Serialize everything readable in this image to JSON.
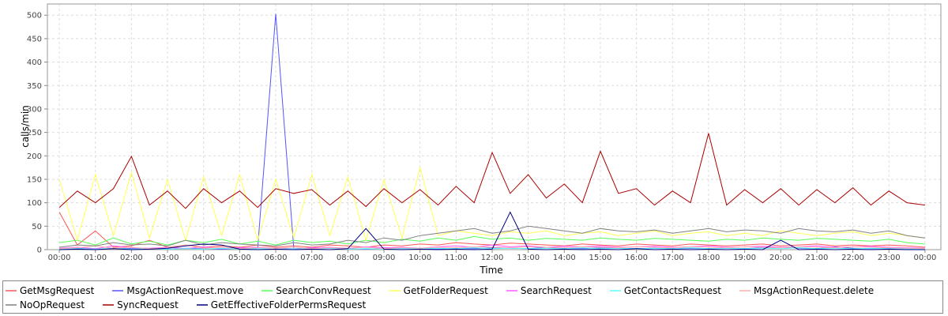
{
  "chart_data": {
    "type": "line",
    "x_label": "Time",
    "y_label": "calls/min",
    "x": [
      0,
      0.5,
      1,
      1.5,
      2,
      2.5,
      3,
      3.5,
      4,
      4.5,
      5,
      5.5,
      6,
      6.5,
      7,
      7.5,
      8,
      8.5,
      9,
      9.5,
      10,
      10.5,
      11,
      11.5,
      12,
      12.5,
      13,
      13.5,
      14,
      14.5,
      15,
      15.5,
      16,
      16.5,
      17,
      17.5,
      18,
      18.5,
      19,
      19.5,
      20,
      20.5,
      21,
      21.5,
      22,
      22.5,
      23,
      23.5,
      24
    ],
    "xlim": [
      -0.33,
      24.44
    ],
    "xticks": [
      {
        "value": 0,
        "label": "00:00"
      },
      {
        "value": 1,
        "label": "01:00"
      },
      {
        "value": 2,
        "label": "02:00"
      },
      {
        "value": 3,
        "label": "03:00"
      },
      {
        "value": 4,
        "label": "04:00"
      },
      {
        "value": 5,
        "label": "05:00"
      },
      {
        "value": 6,
        "label": "06:00"
      },
      {
        "value": 7,
        "label": "07:00"
      },
      {
        "value": 8,
        "label": "08:00"
      },
      {
        "value": 9,
        "label": "09:00"
      },
      {
        "value": 10,
        "label": "10:00"
      },
      {
        "value": 11,
        "label": "11:00"
      },
      {
        "value": 12,
        "label": "12:00"
      },
      {
        "value": 13,
        "label": "13:00"
      },
      {
        "value": 14,
        "label": "14:00"
      },
      {
        "value": 15,
        "label": "15:00"
      },
      {
        "value": 16,
        "label": "16:00"
      },
      {
        "value": 17,
        "label": "17:00"
      },
      {
        "value": 18,
        "label": "18:00"
      },
      {
        "value": 19,
        "label": "19:00"
      },
      {
        "value": 20,
        "label": "20:00"
      },
      {
        "value": 21,
        "label": "21:00"
      },
      {
        "value": 22,
        "label": "22:00"
      },
      {
        "value": 23,
        "label": "23:00"
      },
      {
        "value": 24,
        "label": "00:00"
      }
    ],
    "ylim": [
      0,
      524
    ],
    "yticks": [
      0,
      50,
      100,
      150,
      200,
      250,
      300,
      350,
      400,
      450,
      500
    ],
    "grid": true,
    "legend": "bottom",
    "series": [
      {
        "name": "GetMsgRequest",
        "color": "#ff5555",
        "values": [
          80,
          10,
          40,
          5,
          8,
          20,
          5,
          10,
          5,
          8,
          5,
          10,
          5,
          8,
          5,
          10,
          8,
          5,
          10,
          8,
          12,
          10,
          15,
          12,
          10,
          14,
          12,
          10,
          8,
          12,
          10,
          8,
          12,
          10,
          8,
          12,
          10,
          8,
          10,
          12,
          8,
          10,
          12,
          8,
          10,
          8,
          10,
          8,
          5
        ]
      },
      {
        "name": "MsgActionRequest.move",
        "color": "#5555ff",
        "values": [
          2,
          3,
          1,
          2,
          3,
          2,
          1,
          3,
          2,
          1,
          2,
          3,
          503,
          2,
          1,
          3,
          2,
          1,
          2,
          3,
          2,
          1,
          3,
          2,
          4,
          3,
          2,
          5,
          3,
          2,
          4,
          3,
          2,
          3,
          2,
          3,
          2,
          3,
          2,
          4,
          5,
          3,
          2,
          6,
          3,
          2,
          3,
          2,
          1
        ]
      },
      {
        "name": "SearchConvRequest",
        "color": "#55ff55",
        "values": [
          15,
          20,
          10,
          25,
          12,
          18,
          10,
          20,
          15,
          22,
          12,
          18,
          10,
          20,
          15,
          18,
          12,
          20,
          15,
          22,
          18,
          25,
          20,
          28,
          22,
          25,
          20,
          24,
          22,
          20,
          25,
          22,
          20,
          24,
          22,
          20,
          18,
          22,
          20,
          25,
          22,
          20,
          24,
          22,
          20,
          18,
          22,
          15,
          12
        ]
      },
      {
        "name": "GetFolderRequest",
        "color": "#ffff55",
        "values": [
          150,
          20,
          160,
          30,
          165,
          25,
          150,
          20,
          155,
          30,
          160,
          20,
          150,
          25,
          160,
          30,
          155,
          20,
          150,
          25,
          175,
          30,
          40,
          35,
          30,
          38,
          35,
          40,
          30,
          35,
          38,
          30,
          35,
          40,
          30,
          35,
          38,
          30,
          35,
          30,
          40,
          35,
          30,
          35,
          38,
          30,
          35,
          30,
          25
        ]
      },
      {
        "name": "SearchRequest",
        "color": "#ff55ff",
        "values": [
          3,
          5,
          2,
          8,
          4,
          3,
          5,
          2,
          6,
          3,
          4,
          5,
          3,
          2,
          4,
          5,
          3,
          6,
          4,
          5,
          3,
          6,
          8,
          5,
          10,
          6,
          8,
          5,
          7,
          6,
          8,
          5,
          6,
          7,
          5,
          6,
          8,
          5,
          6,
          7,
          5,
          6,
          8,
          5,
          6,
          7,
          5,
          4,
          3
        ]
      },
      {
        "name": "GetContactsRequest",
        "color": "#55ffff",
        "values": [
          1,
          2,
          1,
          3,
          1,
          2,
          1,
          2,
          1,
          3,
          1,
          2,
          1,
          2,
          1,
          3,
          1,
          2,
          1,
          2,
          2,
          3,
          2,
          4,
          2,
          3,
          2,
          3,
          2,
          4,
          2,
          3,
          2,
          3,
          2,
          4,
          2,
          3,
          2,
          3,
          2,
          4,
          2,
          3,
          2,
          3,
          2,
          2,
          1
        ]
      },
      {
        "name": "MsgActionRequest.delete",
        "color": "#ffafaf",
        "values": [
          2,
          4,
          8,
          3,
          5,
          2,
          4,
          10,
          3,
          5,
          2,
          4,
          3,
          5,
          2,
          4,
          3,
          5,
          2,
          4,
          3,
          5,
          4,
          6,
          5,
          4,
          6,
          5,
          4,
          6,
          5,
          4,
          6,
          5,
          4,
          6,
          5,
          4,
          6,
          5,
          4,
          6,
          5,
          4,
          6,
          5,
          4,
          3,
          2
        ]
      },
      {
        "name": "NoOpRequest",
        "color": "#808080",
        "values": [
          5,
          10,
          8,
          15,
          10,
          12,
          8,
          20,
          10,
          15,
          12,
          10,
          8,
          15,
          10,
          12,
          20,
          15,
          25,
          20,
          30,
          35,
          40,
          45,
          35,
          40,
          50,
          45,
          40,
          35,
          45,
          40,
          38,
          42,
          35,
          40,
          45,
          38,
          42,
          40,
          35,
          45,
          40,
          38,
          42,
          35,
          40,
          30,
          25
        ]
      },
      {
        "name": "SyncRequest",
        "color": "#aa0000",
        "values": [
          90,
          125,
          100,
          130,
          199,
          95,
          125,
          88,
          130,
          100,
          125,
          90,
          130,
          120,
          128,
          95,
          125,
          92,
          130,
          100,
          128,
          95,
          135,
          100,
          207,
          120,
          160,
          110,
          140,
          100,
          210,
          120,
          130,
          95,
          125,
          100,
          248,
          95,
          128,
          100,
          130,
          95,
          128,
          100,
          132,
          95,
          125,
          100,
          95
        ]
      },
      {
        "name": "GetEffectiveFolderPermsRequest",
        "color": "#000080",
        "values": [
          0,
          1,
          0,
          2,
          0,
          1,
          3,
          8,
          12,
          10,
          1,
          0,
          1,
          0,
          1,
          0,
          2,
          45,
          1,
          0,
          1,
          0,
          1,
          0,
          1,
          80,
          1,
          0,
          1,
          0,
          1,
          0,
          2,
          0,
          1,
          0,
          1,
          0,
          1,
          0,
          20,
          0,
          1,
          0,
          1,
          0,
          1,
          0,
          0
        ]
      }
    ]
  }
}
